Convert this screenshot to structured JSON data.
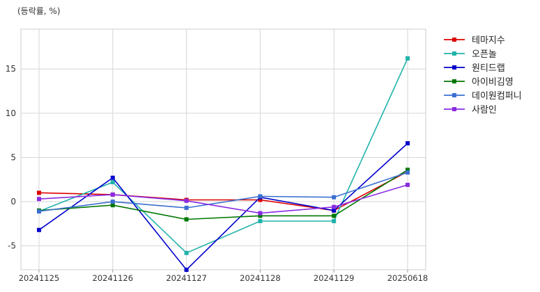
{
  "chart_data": {
    "type": "line",
    "unit_label": "(등락률, %)",
    "categories": [
      "20241125",
      "20241126",
      "20241127",
      "20241128",
      "20241129",
      "20250618"
    ],
    "ylim": [
      -7.7,
      19.5
    ],
    "yticks": [
      -5,
      0,
      5,
      10,
      15
    ],
    "grid": true,
    "legend_position": "top-right-outside",
    "series": [
      {
        "name": "테마지수",
        "color": "#dd0000",
        "values": [
          1.0,
          0.8,
          0.2,
          0.2,
          -1.0,
          3.4
        ]
      },
      {
        "name": "오픈놀",
        "color": "#20b2aa",
        "values": [
          -1.1,
          2.2,
          -5.8,
          -2.2,
          -2.2,
          16.2
        ]
      },
      {
        "name": "원티드랩",
        "color": "#0000cc",
        "values": [
          -3.2,
          2.7,
          -7.7,
          0.5,
          -1.0,
          6.6
        ]
      },
      {
        "name": "아이비김영",
        "color": "#007700",
        "values": [
          -1.0,
          -0.4,
          -2.0,
          -1.6,
          -1.6,
          3.6
        ]
      },
      {
        "name": "데이원컴퍼니",
        "color": "#3a6fd0",
        "values": [
          -1.1,
          0.0,
          -0.7,
          0.6,
          0.5,
          3.3
        ]
      },
      {
        "name": "사람인",
        "color": "#8a2be2",
        "values": [
          0.3,
          0.8,
          0.1,
          -1.3,
          -0.6,
          1.9
        ]
      }
    ]
  }
}
